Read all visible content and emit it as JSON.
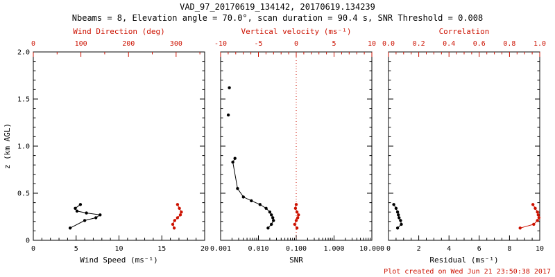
{
  "colors": {
    "red": "#cc1100",
    "black": "#000000",
    "background": "#ffffff"
  },
  "header": {
    "title": "VAD_97_20170619_134142, 20170619.134239",
    "subtitle": "Nbeams = 8, Elevation angle = 70.0°, scan duration = 90.4 s, SNR Threshold = 0.008"
  },
  "footer": {
    "created": "Plot created on Wed Jun 21 23:50:38 2017"
  },
  "chart_data": [
    {
      "type": "line",
      "name": "wind-panel",
      "y_axis": {
        "label": "z (km AGL)",
        "range": [
          0,
          2
        ],
        "ticks": [
          0,
          0.5,
          1.0,
          1.5,
          2.0
        ],
        "tick_labels": [
          "0",
          "0.5",
          "1.0",
          "1.5",
          "2.0"
        ],
        "show_labels": true,
        "minor_step": 0.1
      },
      "bottom_axis": {
        "label": "Wind Speed (ms⁻¹)",
        "range": [
          0,
          20
        ],
        "ticks": [
          0,
          5,
          10,
          15,
          20
        ],
        "tick_labels": [
          "0",
          "5",
          "10",
          "15",
          "20"
        ],
        "minor_step": 1
      },
      "top_axis": {
        "label": "Wind Direction (deg)",
        "range": [
          0,
          360
        ],
        "color": "red",
        "ticks": [
          0,
          100,
          200,
          300
        ],
        "tick_labels": [
          "0",
          "100",
          "200",
          "300"
        ],
        "minor_step": 50
      },
      "series": [
        {
          "name": "wind-speed",
          "axis": "bottom",
          "color": "black",
          "groups": [
            [
              [
                4.3,
                0.13
              ],
              [
                6.0,
                0.21
              ],
              [
                7.3,
                0.24
              ],
              [
                7.8,
                0.27
              ],
              [
                6.2,
                0.29
              ],
              [
                5.1,
                0.31
              ],
              [
                4.9,
                0.34
              ],
              [
                5.5,
                0.38
              ]
            ]
          ]
        },
        {
          "name": "wind-direction",
          "axis": "top",
          "color": "red",
          "groups": [
            [
              [
                296,
                0.13
              ],
              [
                293,
                0.17
              ],
              [
                297,
                0.21
              ],
              [
                303,
                0.24
              ],
              [
                309,
                0.27
              ],
              [
                311,
                0.3
              ],
              [
                307,
                0.34
              ],
              [
                303,
                0.38
              ]
            ]
          ]
        }
      ]
    },
    {
      "type": "line",
      "name": "snr-panel",
      "y_axis": {
        "label": null,
        "range": [
          0,
          2
        ],
        "ticks": [
          0,
          0.5,
          1.0,
          1.5,
          2.0
        ],
        "tick_labels": [
          "0",
          "0.5",
          "1.0",
          "1.5",
          "2.0"
        ],
        "show_labels": false,
        "minor_step": 0.1
      },
      "bottom_axis": {
        "label": "SNR",
        "scale": "log",
        "range": [
          0.001,
          10
        ],
        "ticks": [
          0.001,
          0.01,
          0.1,
          1,
          10
        ],
        "tick_labels": [
          "0.001",
          "0.010",
          "0.100",
          "1.000",
          "10.000"
        ]
      },
      "top_axis": {
        "label": "Vertical velocity (ms⁻¹)",
        "range": [
          -10,
          10
        ],
        "color": "red",
        "ticks": [
          -10,
          -5,
          0,
          5,
          10
        ],
        "tick_labels": [
          "-10",
          "-5",
          "0",
          "5",
          "10"
        ],
        "minor_step": 1
      },
      "refline_top": 0,
      "series": [
        {
          "name": "snr",
          "axis": "bottom",
          "color": "black",
          "groups": [
            [
              [
                0.018,
                0.13
              ],
              [
                0.022,
                0.17
              ],
              [
                0.025,
                0.21
              ],
              [
                0.024,
                0.24
              ],
              [
                0.022,
                0.27
              ],
              [
                0.02,
                0.3
              ],
              [
                0.016,
                0.34
              ],
              [
                0.011,
                0.38
              ],
              [
                0.0065,
                0.42
              ],
              [
                0.004,
                0.46
              ],
              [
                0.0028,
                0.55
              ],
              [
                0.0021,
                0.83
              ],
              [
                0.0024,
                0.87
              ]
            ],
            [
              [
                0.0016,
                1.33
              ]
            ],
            [
              [
                0.0017,
                1.62
              ]
            ]
          ]
        },
        {
          "name": "vertical-velocity",
          "axis": "top",
          "color": "red",
          "groups": [
            [
              [
                0.1,
                0.13
              ],
              [
                -0.2,
                0.17
              ],
              [
                0.0,
                0.21
              ],
              [
                0.2,
                0.24
              ],
              [
                0.3,
                0.27
              ],
              [
                0.1,
                0.3
              ],
              [
                -0.1,
                0.34
              ],
              [
                0.0,
                0.38
              ]
            ]
          ]
        }
      ]
    },
    {
      "type": "line",
      "name": "residual-panel",
      "y_axis": {
        "label": null,
        "range": [
          0,
          2
        ],
        "ticks": [
          0,
          0.5,
          1.0,
          1.5,
          2.0
        ],
        "tick_labels": [
          "0",
          "0.5",
          "1.0",
          "1.5",
          "2.0"
        ],
        "show_labels": false,
        "minor_step": 0.1
      },
      "bottom_axis": {
        "label": "Residual (ms⁻¹)",
        "range": [
          0,
          10
        ],
        "ticks": [
          0,
          2,
          4,
          6,
          8,
          10
        ],
        "tick_labels": [
          "0",
          "2",
          "4",
          "6",
          "8",
          "10"
        ],
        "minor_step": 0.5
      },
      "top_axis": {
        "label": "Correlation",
        "range": [
          0,
          1
        ],
        "color": "red",
        "ticks": [
          0,
          0.2,
          0.4,
          0.6,
          0.8,
          1.0
        ],
        "tick_labels": [
          "0.0",
          "0.2",
          "0.4",
          "0.6",
          "0.8",
          "1.0"
        ],
        "minor_step": 0.05
      },
      "series": [
        {
          "name": "residual",
          "axis": "bottom",
          "color": "black",
          "groups": [
            [
              [
                0.6,
                0.13
              ],
              [
                0.85,
                0.17
              ],
              [
                0.8,
                0.21
              ],
              [
                0.7,
                0.24
              ],
              [
                0.65,
                0.27
              ],
              [
                0.6,
                0.3
              ],
              [
                0.5,
                0.34
              ],
              [
                0.35,
                0.38
              ]
            ]
          ]
        },
        {
          "name": "correlation",
          "axis": "top",
          "color": "red",
          "groups": [
            [
              [
                0.87,
                0.13
              ],
              [
                0.96,
                0.17
              ],
              [
                0.985,
                0.21
              ],
              [
                0.995,
                0.24
              ],
              [
                0.99,
                0.27
              ],
              [
                0.985,
                0.3
              ],
              [
                0.97,
                0.34
              ],
              [
                0.955,
                0.38
              ]
            ]
          ]
        }
      ]
    }
  ]
}
